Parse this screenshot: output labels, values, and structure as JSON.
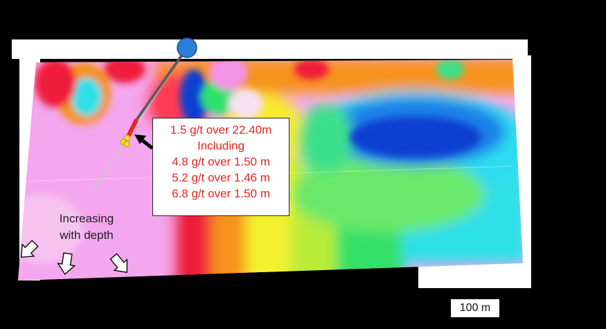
{
  "callout": {
    "lines": [
      "1.5 g/t over 22.40m",
      "Including",
      "4.8 g/t over 1.50 m",
      "5.2 g/t over 1.46 m",
      "6.8 g/t over 1.50 m"
    ],
    "text_color": "#e8231e"
  },
  "annotation": {
    "line1": "Increasing",
    "line2": "with depth"
  },
  "scale_bar": {
    "label": "100 m"
  },
  "colors": {
    "background": "#000000",
    "low": "#0a3fd0",
    "mid_cyan": "#2fe0f0",
    "mid_green": "#34e06a",
    "mid_yellow": "#f3f02e",
    "mid_orange": "#f7931e",
    "high_red": "#ef1f3a",
    "very_high": "#f28ee8",
    "drill_collar": "#2a7fd8",
    "intercept": "#f0221f",
    "sample_points": "#f4e21c"
  }
}
